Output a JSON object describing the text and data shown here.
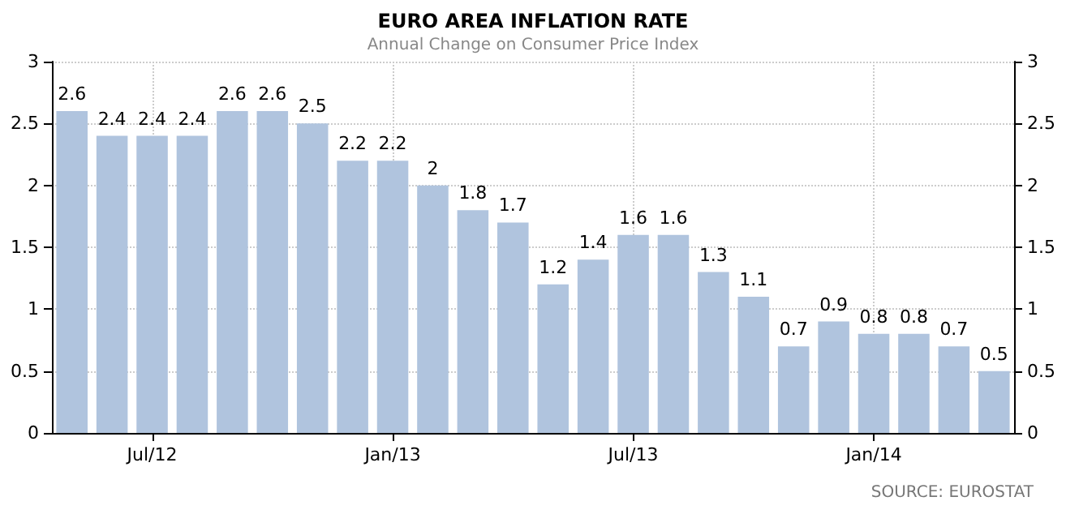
{
  "chart_data": {
    "type": "bar",
    "title": "EURO AREA INFLATION RATE",
    "subtitle": "Annual Change on Consumer Price Index",
    "categories": [
      null,
      null,
      "Jul/12",
      null,
      null,
      null,
      null,
      null,
      "Jan/13",
      null,
      null,
      null,
      null,
      null,
      "Jul/13",
      null,
      null,
      null,
      null,
      null,
      "Jan/14",
      null,
      null,
      null
    ],
    "values": [
      2.6,
      2.4,
      2.4,
      2.4,
      2.6,
      2.6,
      2.5,
      2.2,
      2.2,
      2,
      1.8,
      1.7,
      1.2,
      1.4,
      1.6,
      1.6,
      1.3,
      1.1,
      0.7,
      0.9,
      0.8,
      0.8,
      0.7,
      0.5
    ],
    "color": "#b0c4de",
    "ylim": [
      0,
      3
    ],
    "yticks": [
      0,
      0.5,
      1,
      1.5,
      2,
      2.5,
      3
    ],
    "y2lim": [
      0,
      3
    ],
    "y2ticks": [
      0,
      0.5,
      1,
      1.5,
      2,
      2.5,
      3
    ],
    "grid": true,
    "data_labels": true,
    "annotations": [
      "SOURCE: EUROSTAT"
    ]
  }
}
